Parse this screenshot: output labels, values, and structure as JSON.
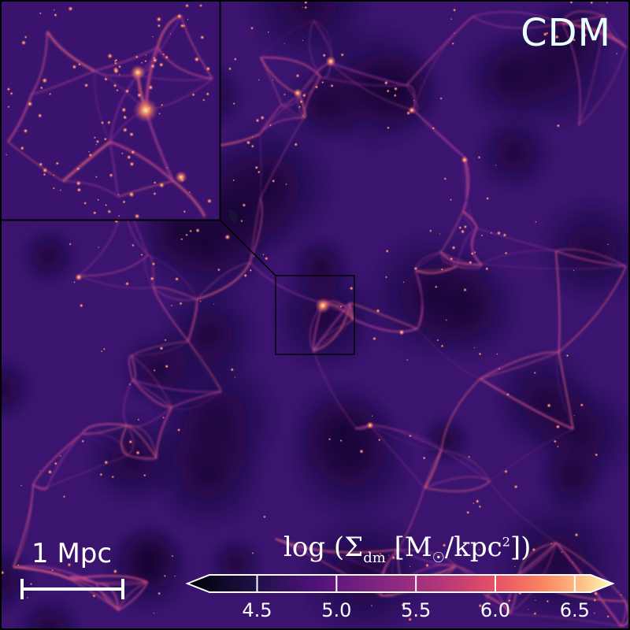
{
  "figure": {
    "model_label": "CDM",
    "scalebar": {
      "label": "1 Mpc"
    },
    "colorbar": {
      "title_parts": {
        "log": "log",
        "sigma": "Σ",
        "sub": "dm",
        "units_open": "[M",
        "sun": "☉",
        "units_mid": "/kpc",
        "sup": "2",
        "units_close": "])"
      },
      "colormap": "magma",
      "range": [
        4.2,
        6.6
      ],
      "ticks": [
        "4.5",
        "5.0",
        "5.5",
        "6.0",
        "6.5"
      ],
      "tick_values": [
        4.5,
        5.0,
        5.5,
        6.0,
        6.5
      ],
      "extend": "both"
    },
    "colors": {
      "void": "#2a0f57",
      "filament": "#c8488a",
      "node": "#fcd9a0",
      "frame": "#000000"
    }
  }
}
